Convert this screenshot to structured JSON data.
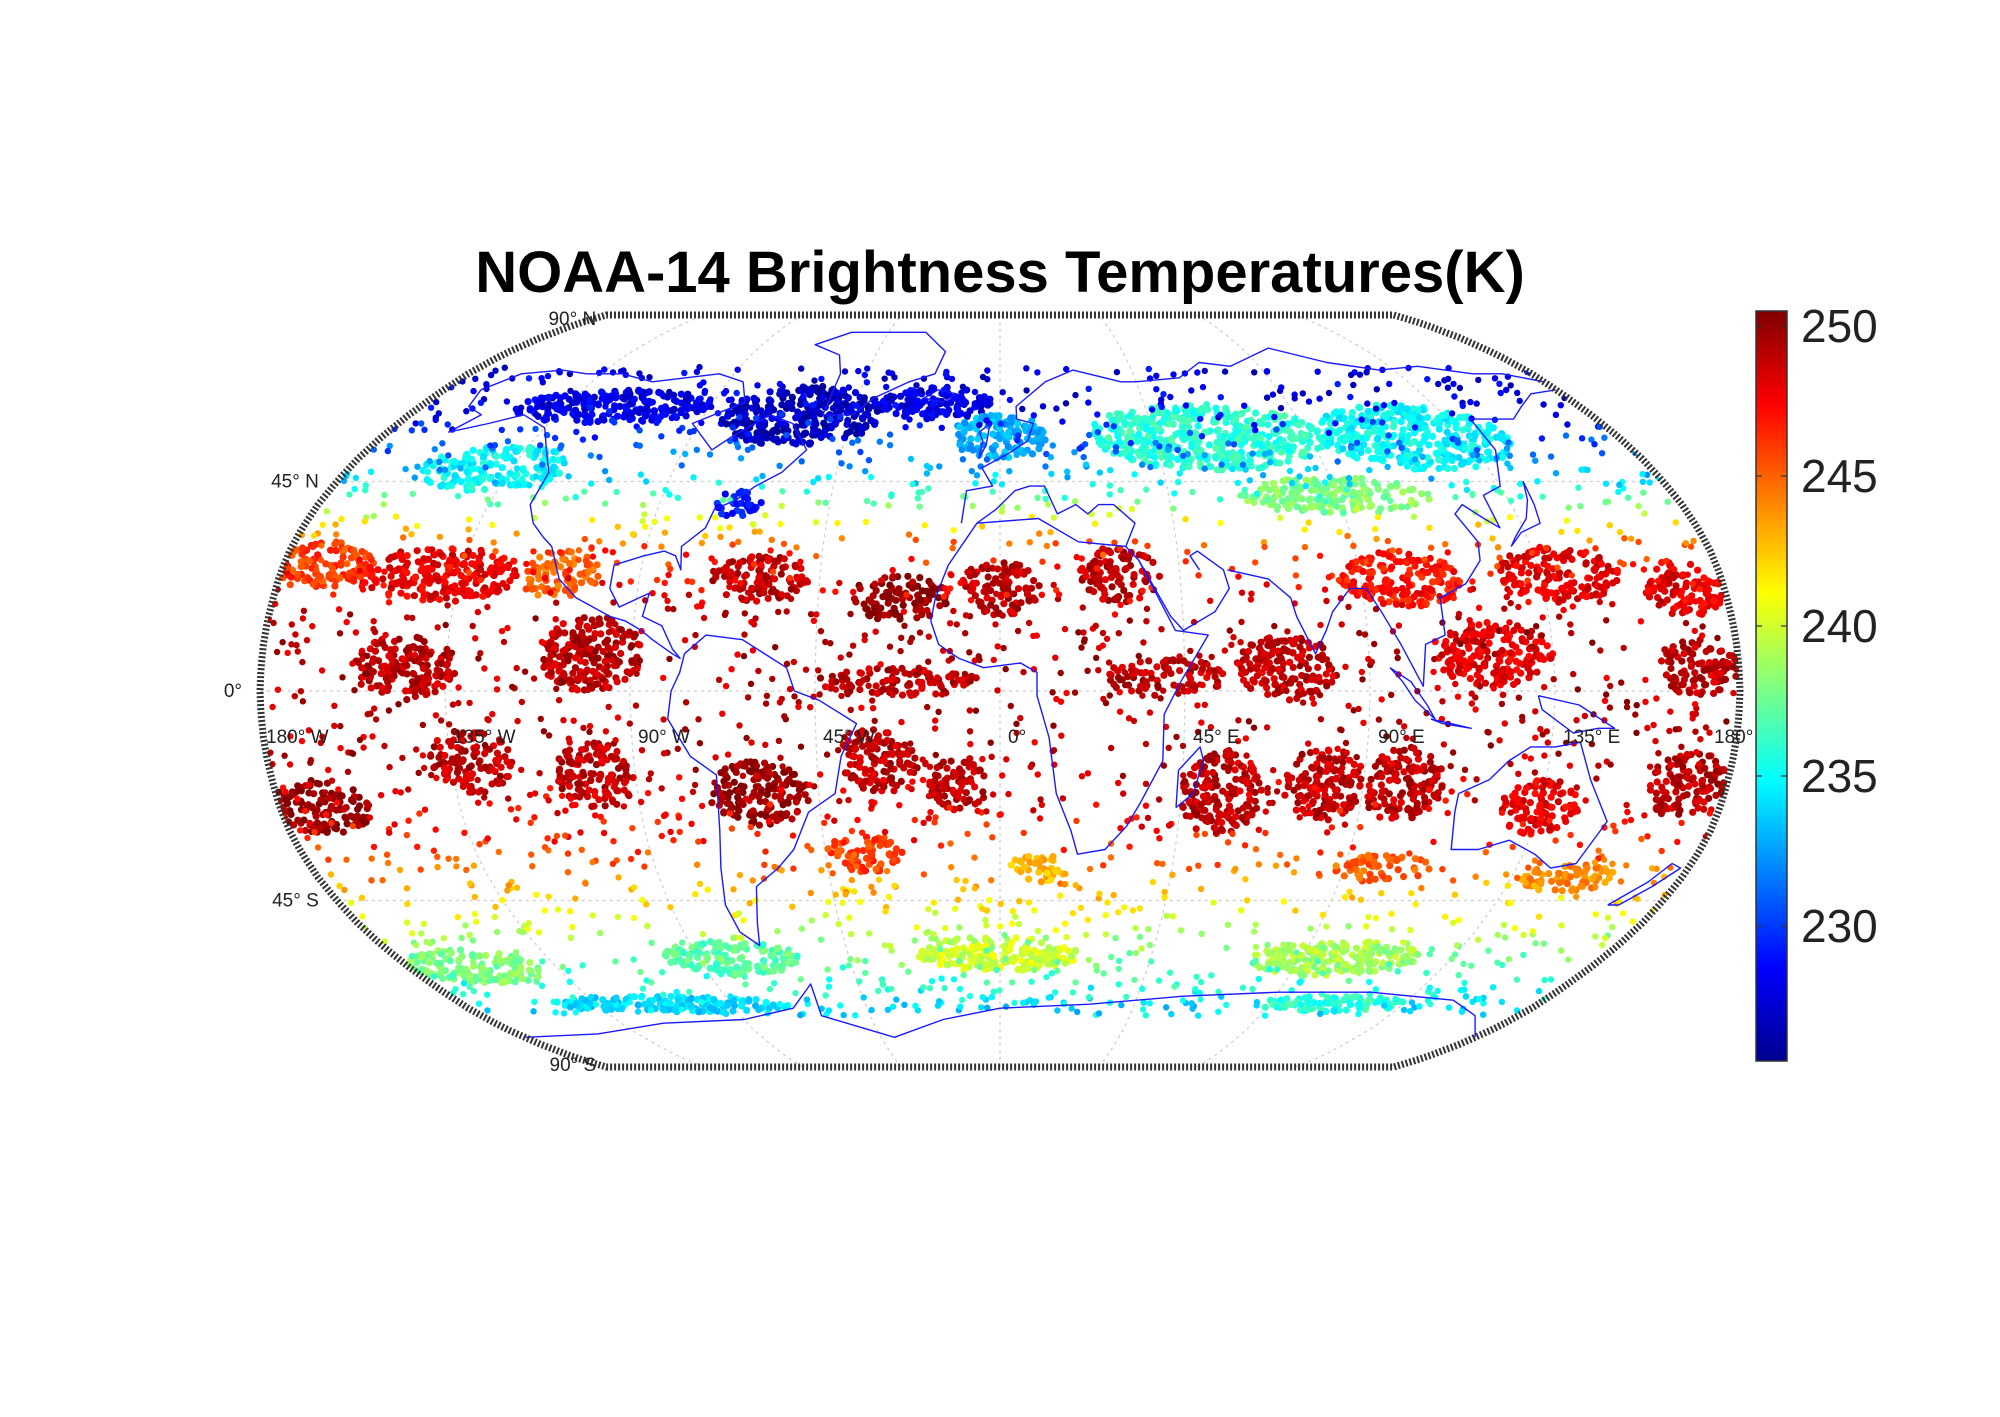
{
  "map": {
    "title": "NOAA-14 Brightness Temperatures(K)",
    "projection": "Robinson",
    "grid": true,
    "lat_labels": [
      {
        "lat": 90,
        "text": "90° N"
      },
      {
        "lat": 45,
        "text": "45° N"
      },
      {
        "lat": 0,
        "text": "0°"
      },
      {
        "lat": -45,
        "text": "45° S"
      },
      {
        "lat": -90,
        "text": "90° S"
      }
    ],
    "lon_labels": [
      {
        "lon": -180,
        "text": "180° W"
      },
      {
        "lon": -135,
        "text": "135° W"
      },
      {
        "lon": -90,
        "text": "90° W"
      },
      {
        "lon": -45,
        "text": "45° W"
      },
      {
        "lon": 0,
        "text": "0°"
      },
      {
        "lon": 45,
        "text": "45° E"
      },
      {
        "lon": 90,
        "text": "90° E"
      },
      {
        "lon": 135,
        "text": "135° E"
      },
      {
        "lon": 180,
        "text": "180°"
      }
    ],
    "colors": {
      "coastline": "#1a1aff",
      "frame": "#333333",
      "grid": "#cccccc"
    }
  },
  "colorbar": {
    "colormap": "jet",
    "range": [
      225.5,
      250.5
    ],
    "ticks": [
      230,
      235,
      240,
      245,
      250
    ]
  },
  "chart_data": {
    "type": "scatter",
    "title": "NOAA-14 Brightness Temperatures(K)",
    "value_unit": "K",
    "lat_range": [
      -72,
      72
    ],
    "lon_range": [
      -180,
      180
    ],
    "colorbar_range": [
      225.5,
      250.5
    ],
    "zonal_mean_temperature_K": [
      {
        "lat": 62,
        "value": 228
      },
      {
        "lat": 55,
        "value": 230
      },
      {
        "lat": 45,
        "value": 234
      },
      {
        "lat": 38,
        "value": 240
      },
      {
        "lat": 30,
        "value": 246
      },
      {
        "lat": 15,
        "value": 249
      },
      {
        "lat": 0,
        "value": 249
      },
      {
        "lat": -15,
        "value": 249
      },
      {
        "lat": -30,
        "value": 247
      },
      {
        "lat": -40,
        "value": 244
      },
      {
        "lat": -50,
        "value": 240
      },
      {
        "lat": -60,
        "value": 237
      },
      {
        "lat": -70,
        "value": 234
      }
    ],
    "data_clusters": [
      {
        "lon": -120,
        "lat": 62,
        "lon_span": 60,
        "lat_span": 8,
        "value": 228
      },
      {
        "lon": -60,
        "lat": 60,
        "lon_span": 50,
        "lat_span": 14,
        "value": 227
      },
      {
        "lon": -20,
        "lat": 63,
        "lon_span": 35,
        "lat_span": 8,
        "value": 228
      },
      {
        "lon": -70,
        "lat": 40,
        "lon_span": 14,
        "lat_span": 6,
        "value": 229
      },
      {
        "lon": -140,
        "lat": 48,
        "lon_span": 40,
        "lat_span": 10,
        "value": 235
      },
      {
        "lon": 60,
        "lat": 55,
        "lon_span": 70,
        "lat_span": 15,
        "value": 236
      },
      {
        "lon": 120,
        "lat": 55,
        "lon_span": 55,
        "lat_span": 15,
        "value": 235
      },
      {
        "lon": 0,
        "lat": 55,
        "lon_span": 30,
        "lat_span": 10,
        "value": 233
      },
      {
        "lon": 90,
        "lat": 42,
        "lon_span": 50,
        "lat_span": 8,
        "value": 238
      },
      {
        "lon": -170,
        "lat": 27,
        "lon_span": 25,
        "lat_span": 10,
        "value": 246
      },
      {
        "lon": -140,
        "lat": 25,
        "lon_span": 40,
        "lat_span": 12,
        "value": 248
      },
      {
        "lon": -110,
        "lat": 25,
        "lon_span": 20,
        "lat_span": 10,
        "value": 245
      },
      {
        "lon": -60,
        "lat": 24,
        "lon_span": 25,
        "lat_span": 10,
        "value": 249
      },
      {
        "lon": -25,
        "lat": 20,
        "lon_span": 25,
        "lat_span": 10,
        "value": 250
      },
      {
        "lon": 0,
        "lat": 22,
        "lon_span": 20,
        "lat_span": 12,
        "value": 249
      },
      {
        "lon": 30,
        "lat": 25,
        "lon_span": 20,
        "lat_span": 12,
        "value": 249
      },
      {
        "lon": 100,
        "lat": 24,
        "lon_span": 30,
        "lat_span": 12,
        "value": 247
      },
      {
        "lon": 140,
        "lat": 25,
        "lon_span": 30,
        "lat_span": 12,
        "value": 248
      },
      {
        "lon": 170,
        "lat": 22,
        "lon_span": 20,
        "lat_span": 12,
        "value": 248
      },
      {
        "lon": -145,
        "lat": 5,
        "lon_span": 25,
        "lat_span": 14,
        "value": 249
      },
      {
        "lon": -100,
        "lat": 8,
        "lon_span": 25,
        "lat_span": 16,
        "value": 249
      },
      {
        "lon": -25,
        "lat": 2,
        "lon_span": 40,
        "lat_span": 6,
        "value": 249
      },
      {
        "lon": 40,
        "lat": 3,
        "lon_span": 30,
        "lat_span": 8,
        "value": 249
      },
      {
        "lon": 70,
        "lat": 5,
        "lon_span": 25,
        "lat_span": 14,
        "value": 249
      },
      {
        "lon": 120,
        "lat": 8,
        "lon_span": 30,
        "lat_span": 14,
        "value": 248
      },
      {
        "lon": 170,
        "lat": 5,
        "lon_span": 20,
        "lat_span": 12,
        "value": 249
      },
      {
        "lon": -170,
        "lat": -25,
        "lon_span": 25,
        "lat_span": 12,
        "value": 250
      },
      {
        "lon": -130,
        "lat": -15,
        "lon_span": 20,
        "lat_span": 14,
        "value": 249
      },
      {
        "lon": -100,
        "lat": -18,
        "lon_span": 20,
        "lat_span": 14,
        "value": 249
      },
      {
        "lon": -60,
        "lat": -22,
        "lon_span": 25,
        "lat_span": 14,
        "value": 250
      },
      {
        "lon": -30,
        "lat": -15,
        "lon_span": 20,
        "lat_span": 14,
        "value": 249
      },
      {
        "lon": -10,
        "lat": -20,
        "lon_span": 15,
        "lat_span": 12,
        "value": 249
      },
      {
        "lon": 55,
        "lat": -22,
        "lon_span": 20,
        "lat_span": 18,
        "value": 249
      },
      {
        "lon": 80,
        "lat": -20,
        "lon_span": 20,
        "lat_span": 16,
        "value": 249
      },
      {
        "lon": 100,
        "lat": -20,
        "lon_span": 20,
        "lat_span": 16,
        "value": 249
      },
      {
        "lon": 135,
        "lat": -25,
        "lon_span": 20,
        "lat_span": 12,
        "value": 248
      },
      {
        "lon": 170,
        "lat": -20,
        "lon_span": 20,
        "lat_span": 14,
        "value": 249
      },
      {
        "lon": -35,
        "lat": -35,
        "lon_span": 20,
        "lat_span": 8,
        "value": 246
      },
      {
        "lon": 10,
        "lat": -38,
        "lon_span": 15,
        "lat_span": 6,
        "value": 243
      },
      {
        "lon": 100,
        "lat": -38,
        "lon_span": 25,
        "lat_span": 6,
        "value": 245
      },
      {
        "lon": 150,
        "lat": -40,
        "lon_span": 25,
        "lat_span": 6,
        "value": 244
      },
      {
        "lon": -160,
        "lat": -60,
        "lon_span": 40,
        "lat_span": 8,
        "value": 238
      },
      {
        "lon": -80,
        "lat": -58,
        "lon_span": 40,
        "lat_span": 8,
        "value": 237
      },
      {
        "lon": 0,
        "lat": -57,
        "lon_span": 50,
        "lat_span": 8,
        "value": 240
      },
      {
        "lon": 100,
        "lat": -58,
        "lon_span": 50,
        "lat_span": 8,
        "value": 239
      },
      {
        "lon": -110,
        "lat": -69,
        "lon_span": 80,
        "lat_span": 4,
        "value": 234
      },
      {
        "lon": 110,
        "lat": -69,
        "lon_span": 50,
        "lat_span": 4,
        "value": 236
      }
    ]
  }
}
